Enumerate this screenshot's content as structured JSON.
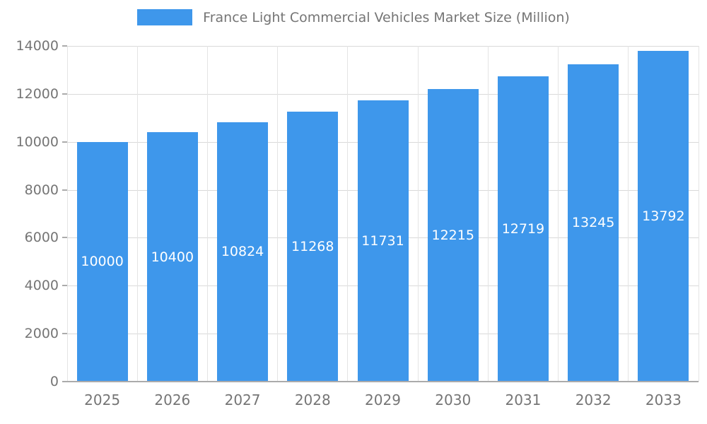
{
  "chart_data": {
    "type": "bar",
    "title": "France Light Commercial Vehicles Market Size (Million)",
    "categories": [
      "2025",
      "2026",
      "2027",
      "2028",
      "2029",
      "2030",
      "2031",
      "2032",
      "2033"
    ],
    "values": [
      10000,
      10400,
      10824,
      11268,
      11731,
      12215,
      12719,
      13245,
      13792
    ],
    "xlabel": "",
    "ylabel": "",
    "ylim": [
      0,
      14000
    ],
    "ytick_step": 2000,
    "grid": true,
    "legend_position": "top",
    "colors": {
      "bar": "#3E97EB",
      "axis_text": "#757575",
      "value_text": "#ffffff",
      "gridline": "#d9d9d9",
      "gridline_light": "#e4e4e4",
      "axis_line": "#ababab",
      "background": "#ffffff"
    }
  }
}
